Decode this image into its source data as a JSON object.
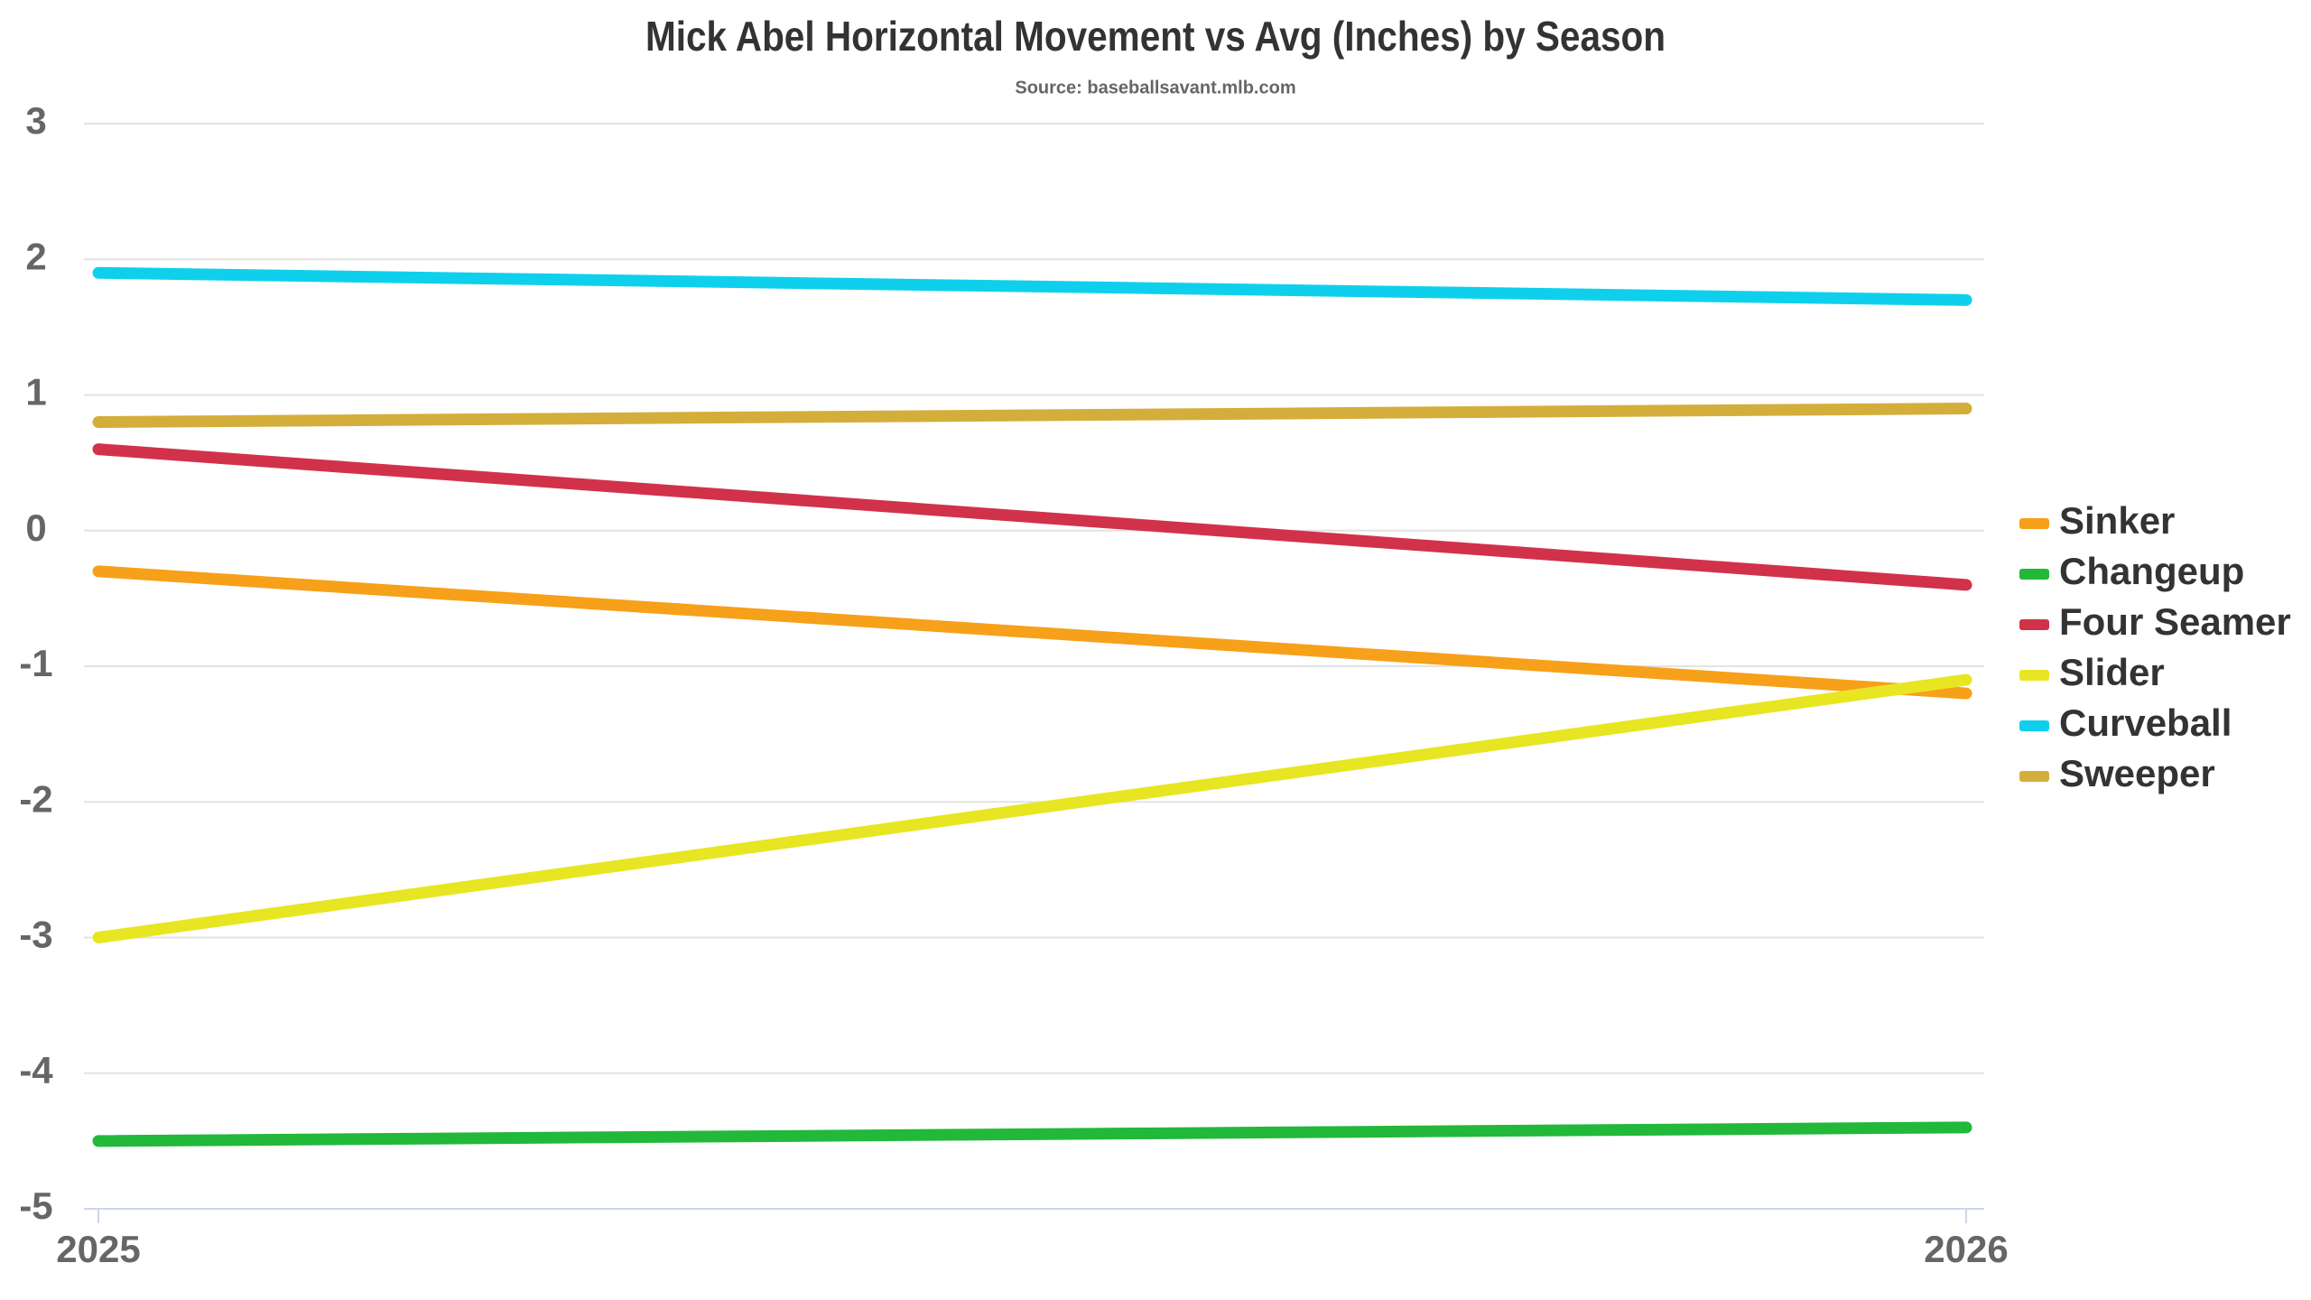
{
  "chart_data": {
    "type": "line",
    "title": "Mick Abel Horizontal Movement vs Avg (Inches) by Season",
    "subtitle": "Source: baseballsavant.mlb.com",
    "categories": [
      "2025",
      "2026"
    ],
    "series": [
      {
        "name": "Sinker",
        "color": "#f7a01a",
        "values": [
          -0.3,
          -1.2
        ]
      },
      {
        "name": "Changeup",
        "color": "#22b83a",
        "values": [
          -4.5,
          -4.4
        ]
      },
      {
        "name": "Four Seamer",
        "color": "#d1324a",
        "values": [
          0.6,
          -0.4
        ]
      },
      {
        "name": "Slider",
        "color": "#e8e622",
        "values": [
          -3.0,
          -1.1
        ]
      },
      {
        "name": "Curveball",
        "color": "#0fd0ec",
        "values": [
          1.9,
          1.7
        ]
      },
      {
        "name": "Sweeper",
        "color": "#d4ae3a",
        "values": [
          0.8,
          0.9
        ]
      }
    ],
    "ylim": [
      -5,
      3
    ],
    "yticks": [
      -5,
      -4,
      -3,
      -2,
      -1,
      0,
      1,
      2,
      3
    ],
    "grid": true,
    "legend": "right"
  }
}
